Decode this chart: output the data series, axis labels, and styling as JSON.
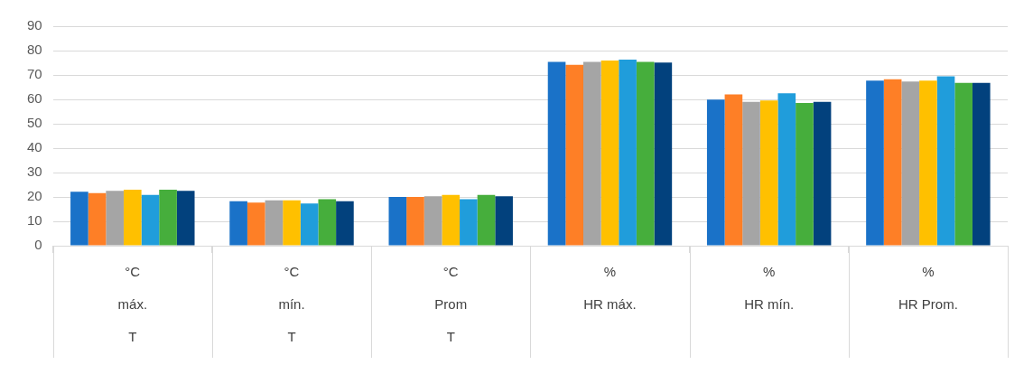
{
  "chart_data": {
    "type": "bar",
    "categories": [
      "°C\nmáx.\nT",
      "°C\nmín.\nT",
      "°C\nProm\nT",
      "%\nHR máx.",
      "%\nHR mín.",
      "%\nHR Prom."
    ],
    "series": [
      {
        "color": "#1a72c8",
        "values": [
          22.1,
          18.2,
          20.0,
          75.4,
          59.9,
          67.7
        ]
      },
      {
        "color": "#fe7f26",
        "values": [
          21.6,
          17.7,
          20.0,
          74.2,
          62.0,
          68.2
        ]
      },
      {
        "color": "#a5a5a5",
        "values": [
          22.5,
          18.6,
          20.3,
          75.4,
          59.0,
          67.3
        ]
      },
      {
        "color": "#ffc000",
        "values": [
          23.0,
          18.6,
          20.8,
          75.9,
          59.5,
          67.7
        ]
      },
      {
        "color": "#209ddb",
        "values": [
          20.8,
          17.3,
          19.1,
          76.3,
          62.5,
          69.4
        ]
      },
      {
        "color": "#46ae3c",
        "values": [
          23.0,
          19.1,
          20.8,
          75.4,
          58.5,
          66.8
        ]
      },
      {
        "color": "#02417d",
        "values": [
          22.5,
          18.2,
          20.3,
          75.1,
          59.0,
          66.8
        ]
      }
    ],
    "ylim": [
      0,
      90
    ],
    "yticks": [
      0,
      10,
      20,
      30,
      40,
      50,
      60,
      70,
      80,
      90
    ],
    "grid": "y",
    "legend": false
  }
}
